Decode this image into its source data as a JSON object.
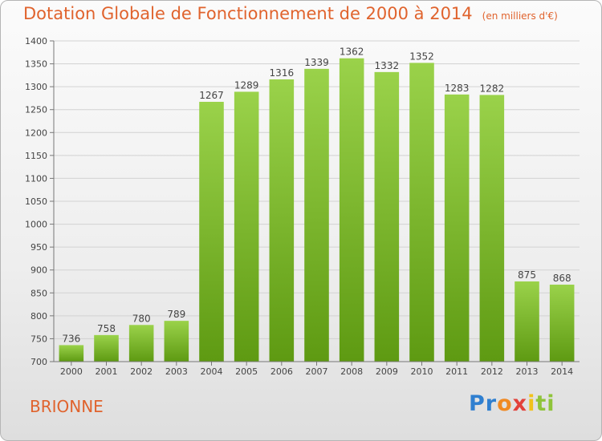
{
  "title": "Dotation Globale de Fonctionnement de 2000 à 2014",
  "unit": "(en milliers d'€)",
  "town": "BRIONNE",
  "logo": {
    "p1": "Pr",
    "p2": "o",
    "p3": "x",
    "p4": "i",
    "p5": "ti"
  },
  "colors": {
    "bar_top": "#9ad24a",
    "bar_bottom": "#5e9a12",
    "accent": "#e0632d"
  },
  "chart_data": {
    "type": "bar",
    "title": "Dotation Globale de Fonctionnement de 2000 à 2014",
    "categories": [
      "2000",
      "2001",
      "2002",
      "2003",
      "2004",
      "2005",
      "2006",
      "2007",
      "2008",
      "2009",
      "2010",
      "2011",
      "2012",
      "2013",
      "2014"
    ],
    "values": [
      736,
      758,
      780,
      789,
      1267,
      1289,
      1316,
      1339,
      1362,
      1332,
      1352,
      1283,
      1282,
      875,
      868
    ],
    "ylim": [
      700,
      1400
    ],
    "yticks": [
      700,
      750,
      800,
      850,
      900,
      950,
      1000,
      1050,
      1100,
      1150,
      1200,
      1250,
      1300,
      1350,
      1400
    ],
    "grid": true,
    "data_labels": true
  }
}
